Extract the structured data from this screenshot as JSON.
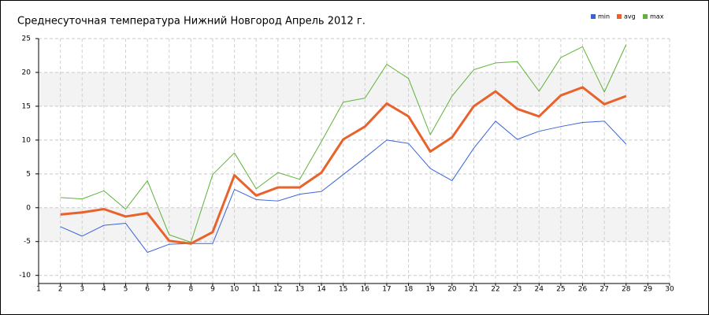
{
  "chart_data": {
    "type": "line",
    "title": "Среднесуточная температура Нижний Новгород  Апрель 2012 г.",
    "x": [
      2,
      3,
      4,
      5,
      6,
      7,
      8,
      9,
      10,
      11,
      12,
      13,
      14,
      15,
      16,
      17,
      18,
      19,
      20,
      21,
      22,
      23,
      24,
      25,
      26,
      27,
      28
    ],
    "series": [
      {
        "name": "min",
        "color": "#3a63d8",
        "width": 1,
        "values": [
          -2.8,
          -4.2,
          -2.6,
          -2.3,
          -6.6,
          -5.4,
          -5.3,
          -5.3,
          2.7,
          1.2,
          1.0,
          2.0,
          2.4,
          4.9,
          7.4,
          10.0,
          9.5,
          5.8,
          4.0,
          8.8,
          12.8,
          10.1,
          11.3,
          12.0,
          12.6,
          12.8,
          9.4
        ]
      },
      {
        "name": "avg",
        "color": "#e8622c",
        "width": 3,
        "values": [
          -1.0,
          -0.7,
          -0.2,
          -1.3,
          -0.8,
          -4.9,
          -5.3,
          -3.6,
          4.8,
          1.8,
          3.0,
          3.0,
          5.2,
          10.1,
          12.0,
          15.4,
          13.5,
          8.3,
          10.4,
          15.0,
          17.2,
          14.6,
          13.5,
          16.6,
          17.8,
          15.3,
          16.5
        ]
      },
      {
        "name": "max",
        "color": "#5fb23a",
        "width": 1,
        "values": [
          1.5,
          1.3,
          2.5,
          -0.2,
          4.0,
          -4.0,
          -5.1,
          4.9,
          8.1,
          2.8,
          5.2,
          4.2,
          9.8,
          15.6,
          16.2,
          21.2,
          19.1,
          10.8,
          16.5,
          20.4,
          21.4,
          21.6,
          17.2,
          22.2,
          23.8,
          17.1,
          24.1
        ]
      }
    ],
    "xlim": [
      1,
      30
    ],
    "xticks": [
      1,
      2,
      3,
      4,
      5,
      6,
      7,
      8,
      9,
      10,
      11,
      12,
      13,
      14,
      15,
      16,
      17,
      18,
      19,
      20,
      21,
      22,
      23,
      24,
      25,
      26,
      27,
      28,
      29,
      30
    ],
    "ylim": [
      -11.2,
      25
    ],
    "yticks": [
      -10,
      -5,
      0,
      5,
      10,
      15,
      20,
      25
    ],
    "grid": true,
    "legend": "top-right"
  }
}
